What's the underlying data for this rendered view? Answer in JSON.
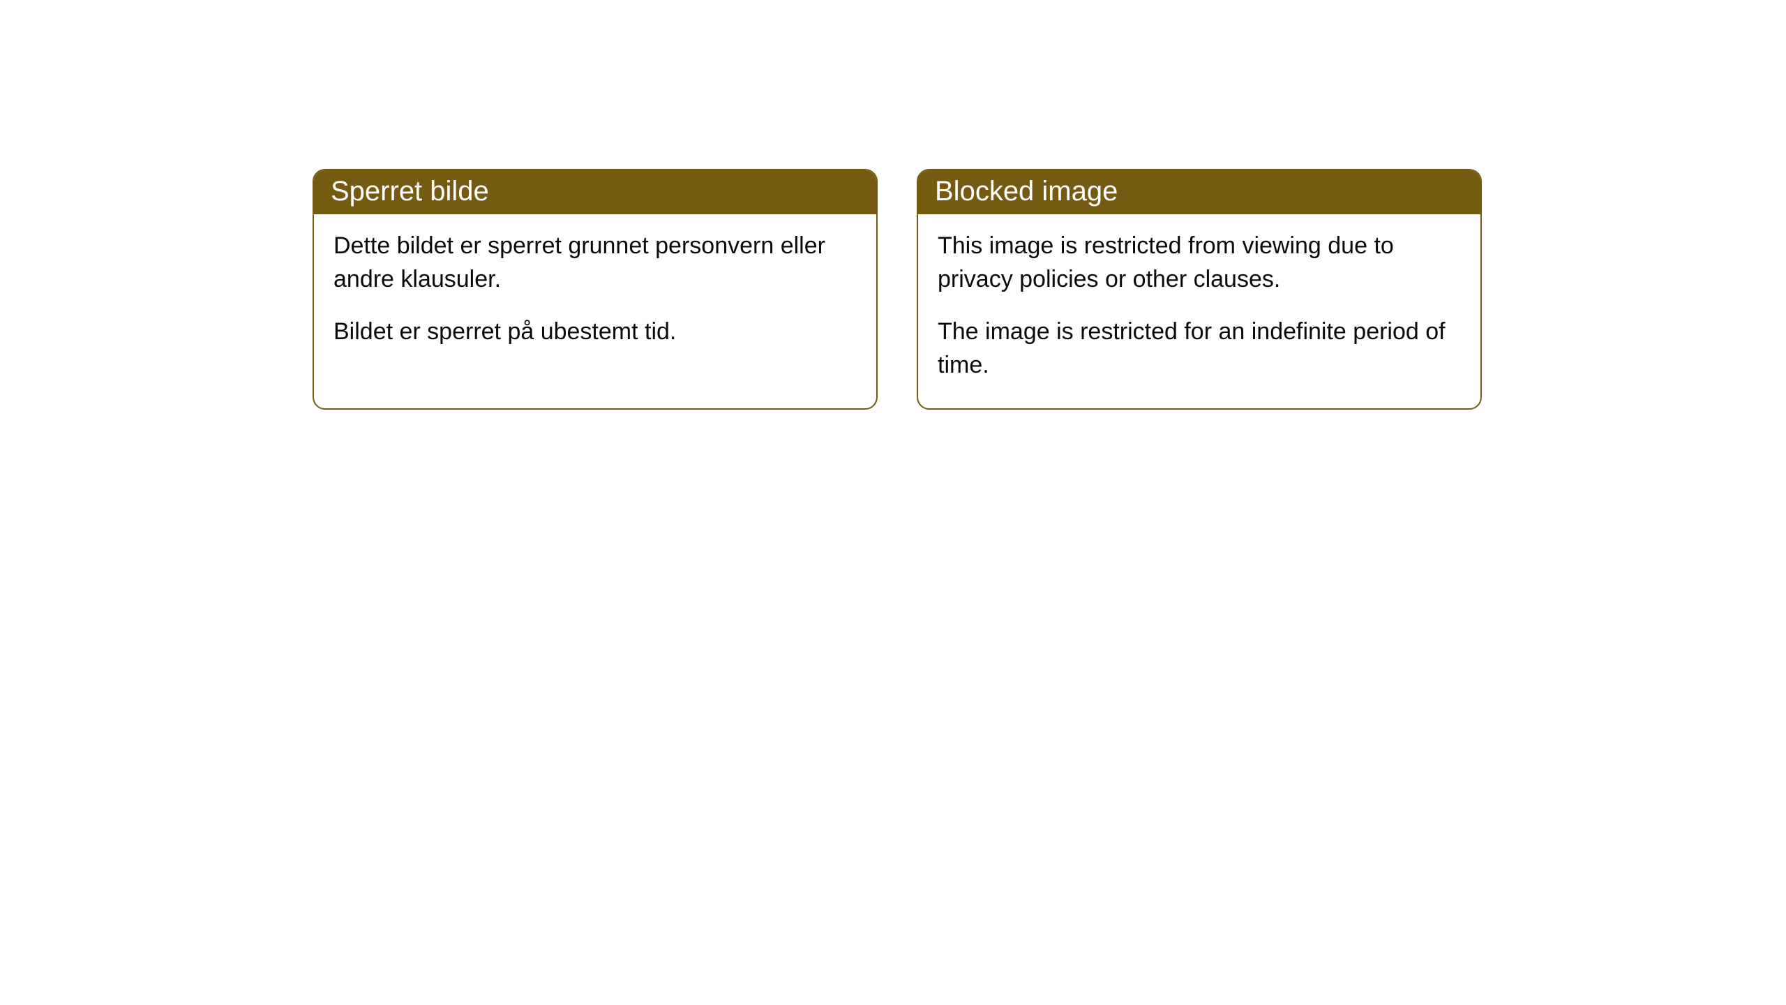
{
  "cards": [
    {
      "title": "Sperret bilde",
      "paragraph1": "Dette bildet er sperret grunnet personvern eller andre klausuler.",
      "paragraph2": "Bildet er sperret på ubestemt tid."
    },
    {
      "title": "Blocked image",
      "paragraph1": "This image is restricted from viewing due to privacy policies or other clauses.",
      "paragraph2": "The image is restricted for an indefinite period of time."
    }
  ],
  "styling": {
    "header_background": "#755a12",
    "header_text_color": "#ffffff",
    "border_color": "#755a12",
    "body_background": "#ffffff",
    "body_text_color": "#0a0a0a",
    "border_radius": 18,
    "title_fontsize": 40,
    "body_fontsize": 34
  }
}
